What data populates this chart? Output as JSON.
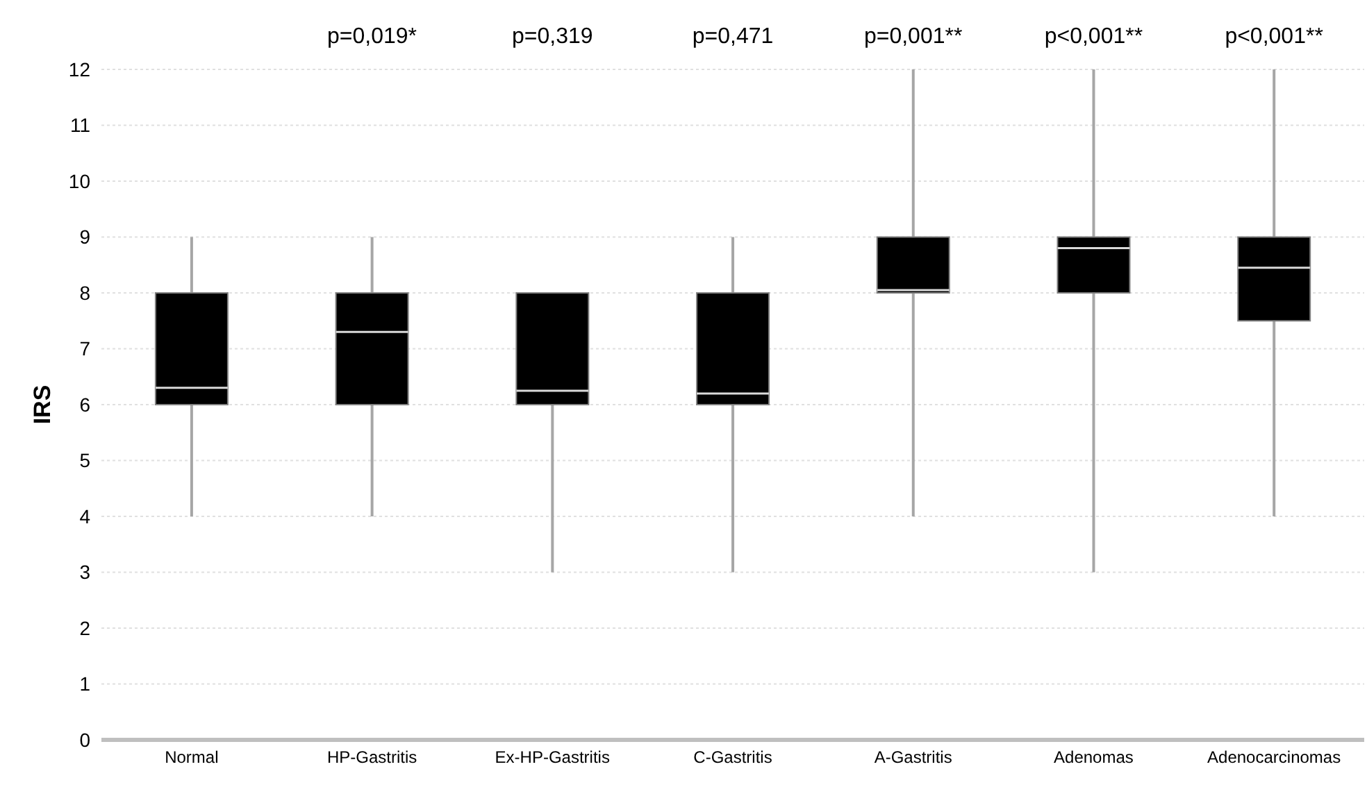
{
  "chart_data": {
    "type": "box",
    "ylabel": "IRS",
    "categories": [
      "Normal",
      "HP-Gastritis",
      "Ex-HP-Gastritis",
      "C-Gastritis",
      "A-Gastritis",
      "Adenomas",
      "Adenocarcinomas"
    ],
    "series": [
      {
        "color": "#000000",
        "boxes": [
          {
            "low": 4,
            "q1": 6,
            "median": 6.3,
            "q3": 8,
            "high": 9
          },
          {
            "low": 4,
            "q1": 6,
            "median": 7.3,
            "q3": 8,
            "high": 9
          },
          {
            "low": 3,
            "q1": 6,
            "median": 6.25,
            "q3": 8,
            "high": 8
          },
          {
            "low": 3,
            "q1": 6,
            "median": 6.2,
            "q3": 8,
            "high": 9
          },
          {
            "low": 4,
            "q1": 8,
            "median": 8.05,
            "q3": 9,
            "high": 12
          },
          {
            "low": 3,
            "q1": 8,
            "median": 8.8,
            "q3": 9,
            "high": 12
          },
          {
            "low": 4,
            "q1": 7.5,
            "median": 8.45,
            "q3": 9,
            "high": 12
          }
        ]
      }
    ],
    "ylim": [
      0,
      12
    ],
    "yticks": [
      0,
      1,
      2,
      3,
      4,
      5,
      6,
      7,
      8,
      9,
      10,
      11,
      12
    ],
    "grid": "y",
    "annotations": [
      "p=0,019*",
      "p=0,319",
      "p=0,471",
      "p=0,001**",
      "p<0,001**",
      "p<0,001**"
    ]
  }
}
